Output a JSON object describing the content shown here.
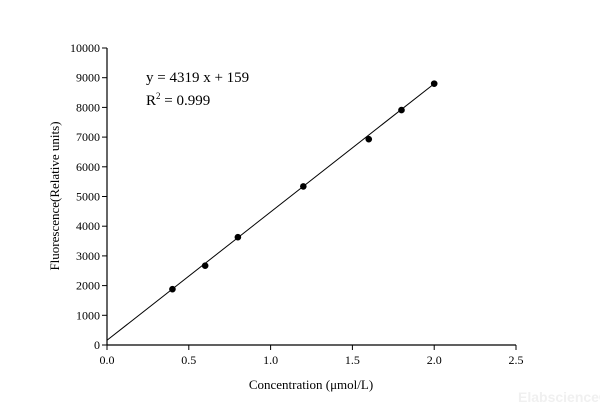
{
  "chart_data": {
    "type": "scatter",
    "title": "",
    "xlabel": "Concentration (μmol/L)",
    "ylabel": "Fluorescence(Relative units)",
    "xlim": [
      0,
      2.5
    ],
    "ylim": [
      0,
      10000
    ],
    "xticks": [
      "0.0",
      "0.5",
      "1.0",
      "1.5",
      "2.0",
      "2.5"
    ],
    "yticks": [
      "0",
      "1000",
      "2000",
      "3000",
      "4000",
      "5000",
      "6000",
      "7000",
      "8000",
      "9000",
      "10000"
    ],
    "grid": false,
    "legend": "none",
    "series": [
      {
        "x": [
          0.4,
          0.6,
          0.8,
          1.2,
          1.6,
          1.8,
          2.0
        ],
        "y": [
          1880,
          2670,
          3630,
          5340,
          6930,
          7910,
          8800
        ],
        "color": "#000000"
      }
    ],
    "trendline": {
      "slope": 4319,
      "intercept": 159,
      "x_range": [
        0,
        2.0
      ],
      "color": "#000000"
    },
    "annotations": {
      "equation": "y = 4319 x + 159",
      "r2_prefix": "R",
      "r2_sup": "2",
      "r2_value": " = 0.999"
    }
  },
  "watermark": "Elabscience®"
}
